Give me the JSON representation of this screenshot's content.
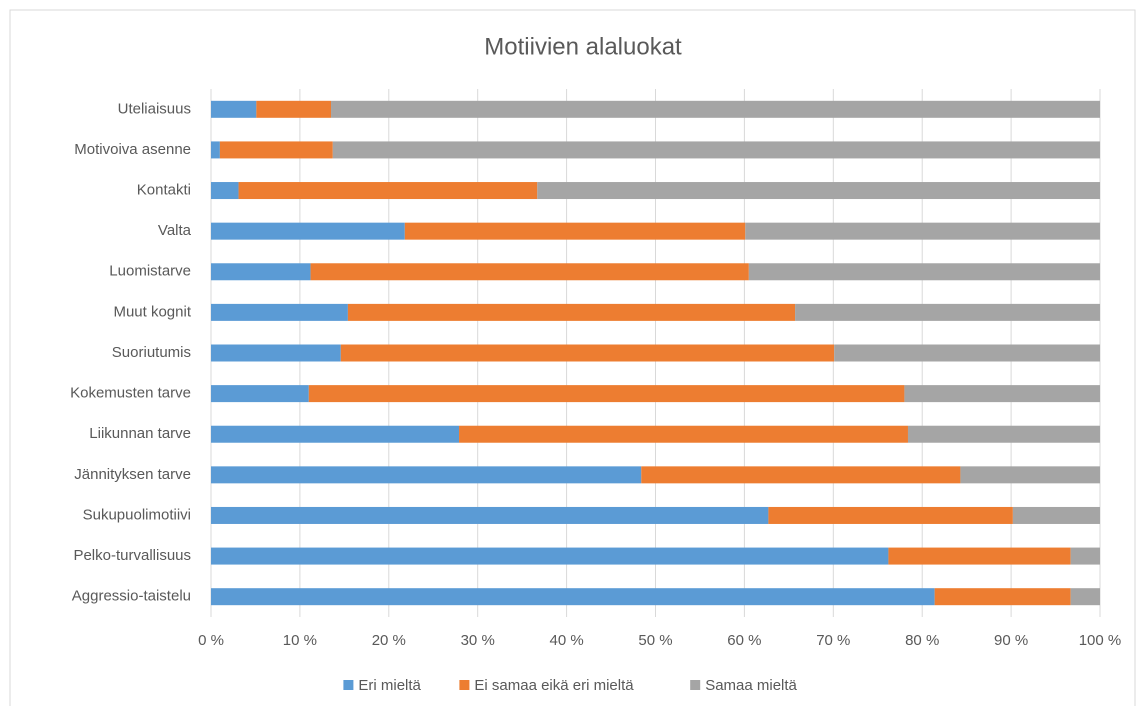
{
  "chart_data": {
    "type": "stacked_barh",
    "title": "Motiivien alaluokat",
    "categories": [
      "Uteliaisuus",
      "Motivoiva asenne",
      "Kontakti",
      "Valta",
      "Luomistarve",
      "Muut kognit",
      "Suoriutumis",
      "Kokemusten tarve",
      "Liikunnan tarve",
      "Jännityksen tarve",
      "Sukupuolimotiivi",
      "Pelko-turvallisuus",
      "Aggressio-taistelu"
    ],
    "series": [
      {
        "name": "Eri mieltä",
        "color": "#5b9bd5",
        "values": [
          5.1,
          1.0,
          3.1,
          21.8,
          11.2,
          15.4,
          14.6,
          11.0,
          27.9,
          48.4,
          62.7,
          76.2,
          81.4
        ]
      },
      {
        "name": "Ei samaa eikä eri mieltä",
        "color": "#ed7d31",
        "values": [
          8.4,
          12.7,
          33.6,
          38.3,
          49.3,
          50.3,
          55.5,
          67.0,
          50.5,
          35.9,
          27.5,
          20.5,
          15.3
        ]
      },
      {
        "name": "Samaa mieltä",
        "color": "#a5a5a5",
        "values": [
          86.5,
          86.3,
          63.3,
          39.9,
          39.5,
          34.3,
          29.9,
          22.0,
          21.6,
          15.7,
          9.8,
          3.3,
          3.3
        ]
      }
    ],
    "xlim": [
      0,
      100
    ],
    "xticks": [
      {
        "value": 0,
        "label": "0 %"
      },
      {
        "value": 10,
        "label": "10 %"
      },
      {
        "value": 20,
        "label": "20 %"
      },
      {
        "value": 30,
        "label": "30 %"
      },
      {
        "value": 40,
        "label": "40 %"
      },
      {
        "value": 50,
        "label": "50 %"
      },
      {
        "value": 60,
        "label": "60 %"
      },
      {
        "value": 70,
        "label": "70 %"
      },
      {
        "value": 80,
        "label": "80 %"
      },
      {
        "value": 90,
        "label": "90 %"
      },
      {
        "value": 100,
        "label": "100 %"
      }
    ],
    "grid": true,
    "legend": "bottom"
  }
}
